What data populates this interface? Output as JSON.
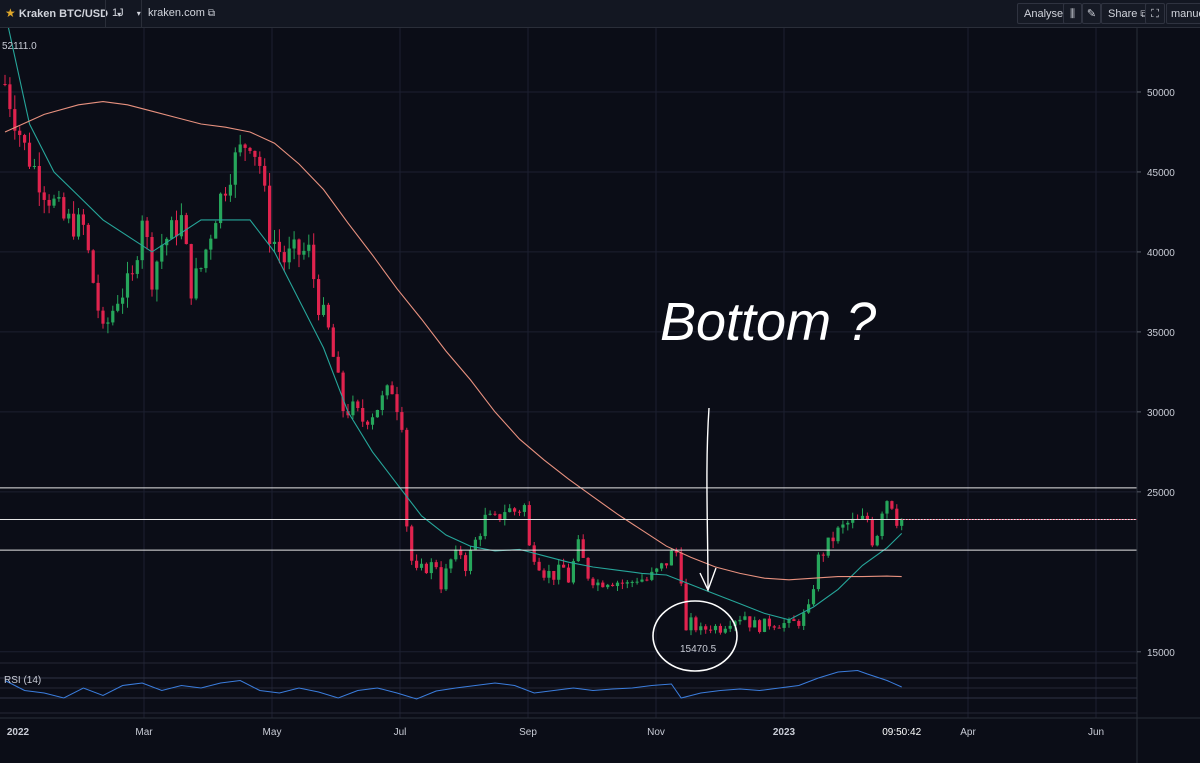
{
  "toolbar": {
    "symbol": "Kraken BTC/USD",
    "interval": "1J",
    "source": "kraken.com",
    "analyse_label": "Analyse",
    "share_label": "Share",
    "user_label": "manuel",
    "icons": [
      "star-icon",
      "chevron-down-icon",
      "external-link-icon",
      "indicators-icon",
      "pencil-icon",
      "share-icon",
      "fullscreen-icon"
    ]
  },
  "chart_data": {
    "type": "candlestick",
    "title": "Kraken BTC/USD",
    "y_axis": {
      "ticks": [
        15000,
        25000,
        30000,
        35000,
        40000,
        45000,
        50000
      ],
      "scale": "linear",
      "position": "right"
    },
    "x_axis": {
      "ticks": [
        "2022",
        "Mar",
        "May",
        "Jul",
        "Sep",
        "Nov",
        "2023",
        "Apr",
        "Jun"
      ]
    },
    "high_label": "52111.0",
    "horizontal_levels": [
      {
        "label": "25250.0",
        "value": 25250
      },
      {
        "label": "23272.6",
        "value": 23272.6,
        "badge_color": "#9e1b32"
      },
      {
        "label": "21359.1",
        "value": 21359.1
      }
    ],
    "ma_badge": {
      "label": "19732.4",
      "value": 19732.4,
      "color": "#e8a69a"
    },
    "low_label": "15470.5",
    "time_label": "09:50:42",
    "annotation": "Bottom ?",
    "colors": {
      "up": "#26a65b",
      "down": "#e0234e",
      "ma_fast": "#26a69a",
      "ma_slow": "#e8917f",
      "rsi": "#3b7ddd"
    },
    "series": [
      {
        "name": "price",
        "close": [
          [
            0,
            50500
          ],
          [
            4,
            46500
          ],
          [
            8,
            44000
          ],
          [
            12,
            42000
          ],
          [
            16,
            41500
          ],
          [
            20,
            34800
          ],
          [
            23,
            37200
          ],
          [
            26,
            38200
          ],
          [
            28,
            42500
          ],
          [
            30,
            38500
          ],
          [
            32,
            40500
          ],
          [
            36,
            42000
          ],
          [
            38,
            37800
          ],
          [
            40,
            39000
          ],
          [
            43,
            42500
          ],
          [
            46,
            45200
          ],
          [
            49,
            46800
          ],
          [
            50,
            47200
          ],
          [
            52,
            45500
          ],
          [
            54,
            41200
          ],
          [
            57,
            39500
          ],
          [
            59,
            39900
          ],
          [
            62,
            40000
          ],
          [
            64,
            36800
          ],
          [
            66,
            35000
          ],
          [
            69,
            30200
          ],
          [
            71,
            30100
          ],
          [
            73,
            29500
          ],
          [
            75,
            30000
          ],
          [
            77,
            30700
          ],
          [
            79,
            31500
          ],
          [
            81,
            29500
          ],
          [
            82,
            23000
          ],
          [
            83,
            20700
          ],
          [
            84,
            19900
          ],
          [
            86,
            20300
          ],
          [
            88,
            20500
          ],
          [
            89,
            19200
          ],
          [
            91,
            20700
          ],
          [
            93,
            21200
          ],
          [
            94,
            20400
          ],
          [
            96,
            21900
          ],
          [
            98,
            23300
          ],
          [
            100,
            23200
          ],
          [
            102,
            23900
          ],
          [
            104,
            23800
          ],
          [
            106,
            24100
          ],
          [
            107,
            21500
          ],
          [
            108,
            21100
          ],
          [
            110,
            20000
          ],
          [
            112,
            19800
          ],
          [
            114,
            20200
          ],
          [
            115,
            19500
          ],
          [
            117,
            21600
          ],
          [
            119,
            19800
          ],
          [
            121,
            19300
          ],
          [
            123,
            19500
          ],
          [
            125,
            19400
          ],
          [
            127,
            19200
          ],
          [
            129,
            19600
          ],
          [
            131,
            19500
          ],
          [
            133,
            20000
          ],
          [
            135,
            20600
          ],
          [
            136,
            21100
          ],
          [
            137,
            21200
          ],
          [
            138,
            19700
          ],
          [
            139,
            16200
          ],
          [
            140,
            16800
          ],
          [
            142,
            16300
          ],
          [
            144,
            16600
          ],
          [
            146,
            16500
          ],
          [
            148,
            17000
          ],
          [
            150,
            17200
          ],
          [
            151,
            17300
          ],
          [
            152,
            16800
          ],
          [
            154,
            16600
          ],
          [
            156,
            16800
          ],
          [
            158,
            16800
          ],
          [
            160,
            16700
          ],
          [
            162,
            16900
          ],
          [
            164,
            17600
          ],
          [
            166,
            20800
          ],
          [
            168,
            21700
          ],
          [
            170,
            22500
          ],
          [
            172,
            23000
          ],
          [
            174,
            23100
          ],
          [
            176,
            23300
          ],
          [
            177,
            22000
          ],
          [
            178,
            22500
          ],
          [
            179,
            24000
          ],
          [
            180,
            24600
          ],
          [
            181,
            24300
          ],
          [
            182,
            23300
          ],
          [
            183,
            23300
          ]
        ]
      },
      {
        "name": "MA fast",
        "values": [
          [
            0,
            55000
          ],
          [
            5,
            48000
          ],
          [
            10,
            45000
          ],
          [
            15,
            43500
          ],
          [
            20,
            42000
          ],
          [
            25,
            41000
          ],
          [
            30,
            40000
          ],
          [
            35,
            41000
          ],
          [
            40,
            42000
          ],
          [
            45,
            42000
          ],
          [
            50,
            42000
          ],
          [
            55,
            40000
          ],
          [
            60,
            37000
          ],
          [
            65,
            34000
          ],
          [
            70,
            30000
          ],
          [
            75,
            27500
          ],
          [
            80,
            25500
          ],
          [
            85,
            23500
          ],
          [
            90,
            22300
          ],
          [
            95,
            21600
          ],
          [
            100,
            21300
          ],
          [
            105,
            21400
          ],
          [
            110,
            21000
          ],
          [
            115,
            20600
          ],
          [
            120,
            20300
          ],
          [
            125,
            20100
          ],
          [
            130,
            19900
          ],
          [
            135,
            19800
          ],
          [
            140,
            19200
          ],
          [
            145,
            18600
          ],
          [
            150,
            18000
          ],
          [
            155,
            17400
          ],
          [
            160,
            17000
          ],
          [
            165,
            17800
          ],
          [
            170,
            18900
          ],
          [
            175,
            20400
          ],
          [
            180,
            21500
          ],
          [
            183,
            22400
          ]
        ]
      },
      {
        "name": "MA slow",
        "values": [
          [
            0,
            47500
          ],
          [
            8,
            48600
          ],
          [
            15,
            49200
          ],
          [
            20,
            49400
          ],
          [
            25,
            49200
          ],
          [
            30,
            48800
          ],
          [
            35,
            48400
          ],
          [
            40,
            48000
          ],
          [
            45,
            47800
          ],
          [
            50,
            47500
          ],
          [
            55,
            46800
          ],
          [
            60,
            45500
          ],
          [
            65,
            43900
          ],
          [
            70,
            41800
          ],
          [
            75,
            39800
          ],
          [
            80,
            37700
          ],
          [
            85,
            35800
          ],
          [
            90,
            33800
          ],
          [
            95,
            32000
          ],
          [
            100,
            30000
          ],
          [
            105,
            28300
          ],
          [
            110,
            27000
          ],
          [
            115,
            25800
          ],
          [
            120,
            24700
          ],
          [
            125,
            23600
          ],
          [
            130,
            22600
          ],
          [
            135,
            21600
          ],
          [
            140,
            20900
          ],
          [
            145,
            20300
          ],
          [
            150,
            19900
          ],
          [
            155,
            19600
          ],
          [
            160,
            19500
          ],
          [
            165,
            19600
          ],
          [
            170,
            19700
          ],
          [
            175,
            19700
          ],
          [
            180,
            19730
          ],
          [
            183,
            19700
          ]
        ]
      },
      {
        "name": "RSI (14)",
        "values": [
          [
            0,
            65
          ],
          [
            4,
            45
          ],
          [
            8,
            40
          ],
          [
            12,
            30
          ],
          [
            16,
            50
          ],
          [
            20,
            35
          ],
          [
            24,
            55
          ],
          [
            28,
            60
          ],
          [
            32,
            45
          ],
          [
            36,
            55
          ],
          [
            40,
            50
          ],
          [
            44,
            60
          ],
          [
            48,
            65
          ],
          [
            52,
            45
          ],
          [
            56,
            40
          ],
          [
            60,
            50
          ],
          [
            64,
            42
          ],
          [
            68,
            30
          ],
          [
            72,
            45
          ],
          [
            76,
            50
          ],
          [
            80,
            40
          ],
          [
            84,
            28
          ],
          [
            88,
            44
          ],
          [
            92,
            50
          ],
          [
            96,
            55
          ],
          [
            100,
            60
          ],
          [
            104,
            55
          ],
          [
            108,
            40
          ],
          [
            112,
            45
          ],
          [
            116,
            50
          ],
          [
            120,
            45
          ],
          [
            124,
            48
          ],
          [
            128,
            50
          ],
          [
            132,
            55
          ],
          [
            136,
            58
          ],
          [
            138,
            30
          ],
          [
            142,
            40
          ],
          [
            146,
            45
          ],
          [
            150,
            48
          ],
          [
            154,
            45
          ],
          [
            158,
            50
          ],
          [
            162,
            55
          ],
          [
            166,
            70
          ],
          [
            170,
            82
          ],
          [
            174,
            85
          ],
          [
            176,
            78
          ],
          [
            180,
            65
          ],
          [
            183,
            52
          ]
        ]
      }
    ],
    "rsi": {
      "label": "RSI (14)",
      "ticks": [
        0,
        50,
        100
      ]
    }
  }
}
